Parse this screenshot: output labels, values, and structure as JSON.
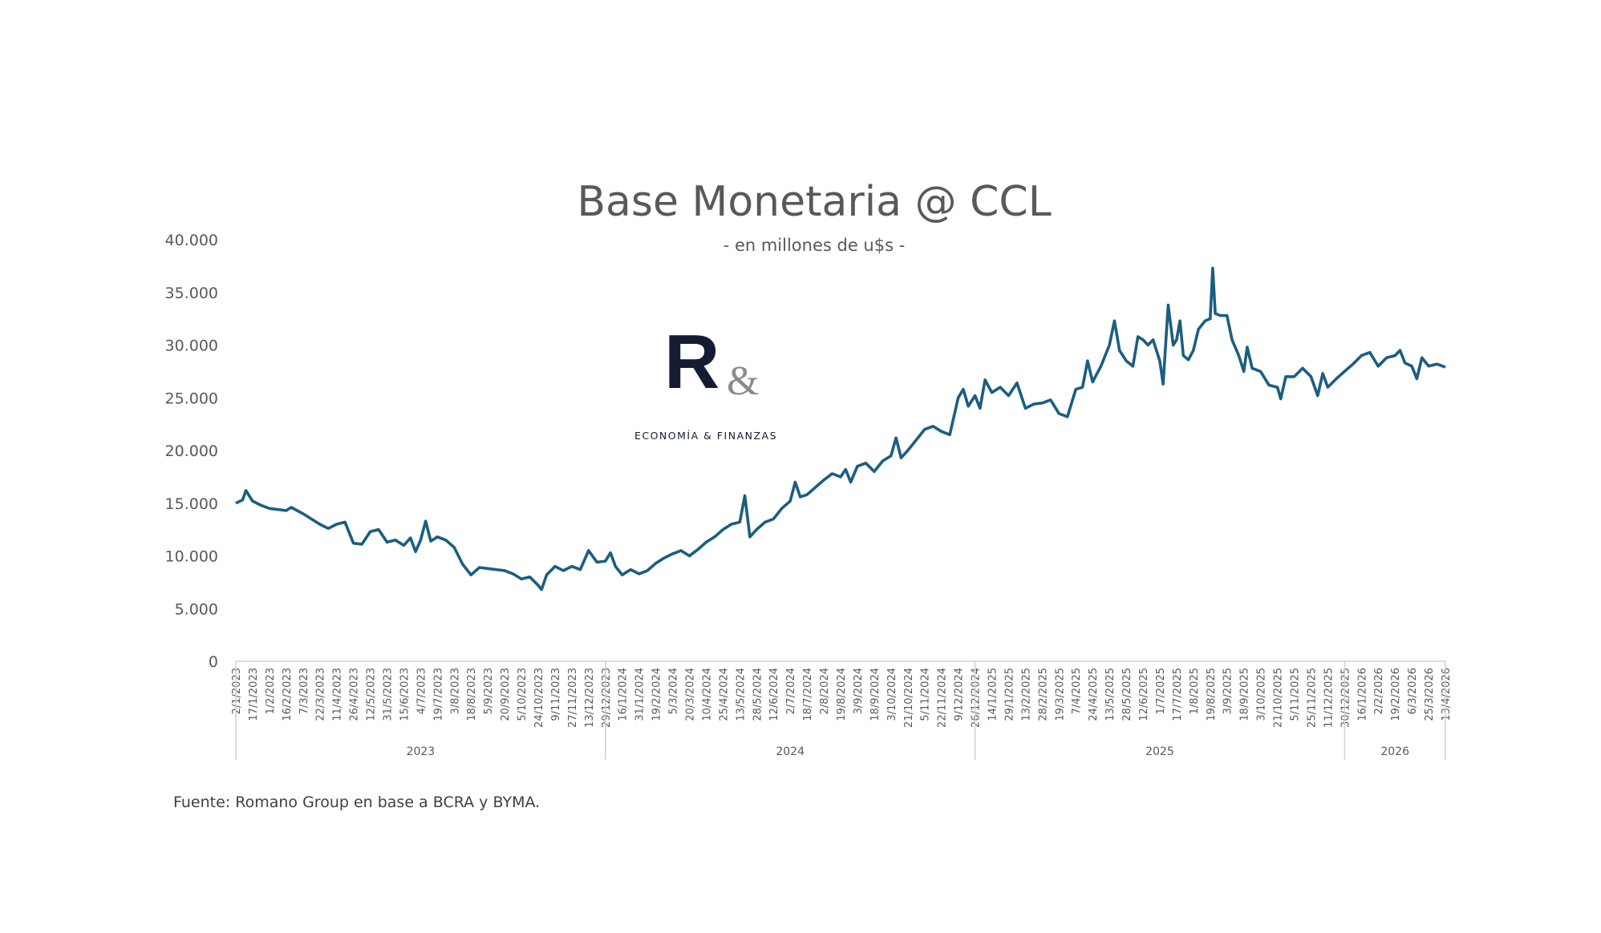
{
  "chart_data": {
    "type": "line",
    "title": "Base Monetaria @ CCL",
    "subtitle": "- en millones de u$s  -",
    "source": "Fuente: Romano Group en base a BCRA y BYMA.",
    "logo": {
      "mark": "R&",
      "text": "ECONOMÍA & FINANZAS"
    },
    "ylim": [
      0,
      40000
    ],
    "yticks": [
      "0",
      "5.000",
      "10.000",
      "15.000",
      "20.000",
      "25.000",
      "30.000",
      "35.000",
      "40.000"
    ],
    "ytick_values": [
      0,
      5000,
      10000,
      15000,
      20000,
      25000,
      30000,
      35000,
      40000
    ],
    "grid": false,
    "line_color": "#1b5e80",
    "categories": [
      "2/1/2023",
      "17/1/2023",
      "1/2/2023",
      "16/2/2023",
      "7/3/2023",
      "22/3/2023",
      "11/4/2023",
      "26/4/2023",
      "12/5/2023",
      "31/5/2023",
      "15/6/2023",
      "4/7/2023",
      "19/7/2023",
      "3/8/2023",
      "18/8/2023",
      "5/9/2023",
      "20/9/2023",
      "5/10/2023",
      "24/10/2023",
      "9/11/2023",
      "27/11/2023",
      "13/12/2023",
      "29/12/2023",
      "16/1/2024",
      "31/1/2024",
      "19/2/2024",
      "5/3/2024",
      "20/3/2024",
      "10/4/2024",
      "25/4/2024",
      "13/5/2024",
      "28/5/2024",
      "12/6/2024",
      "2/7/2024",
      "18/7/2024",
      "2/8/2024",
      "19/8/2024",
      "3/9/2024",
      "18/9/2024",
      "3/10/2024",
      "21/10/2024",
      "5/11/2024",
      "22/11/2024",
      "9/12/2024",
      "26/12/2024",
      "14/1/2025",
      "29/1/2025",
      "13/2/2025",
      "28/2/2025",
      "19/3/2025",
      "7/4/2025",
      "24/4/2025",
      "13/5/2025",
      "28/5/2025",
      "12/6/2025",
      "1/7/2025",
      "17/7/2025",
      "1/8/2025",
      "19/8/2025",
      "3/9/2025",
      "18/9/2025",
      "3/10/2025",
      "21/10/2025",
      "5/11/2025",
      "25/11/2025",
      "11/12/2025",
      "30/12/2025",
      "16/1/2026",
      "2/2/2026",
      "19/2/2026",
      "6/3/2026",
      "25/3/2026",
      "13/4/2026"
    ],
    "years": [
      {
        "label": "2023",
        "from": 0,
        "to": 22
      },
      {
        "label": "2024",
        "from": 22,
        "to": 44
      },
      {
        "label": "2025",
        "from": 44,
        "to": 66
      },
      {
        "label": "2026",
        "from": 66,
        "to": 72
      }
    ],
    "series": [
      {
        "name": "Base Monetaria @ CCL",
        "points": [
          [
            0,
            15000
          ],
          [
            0.4,
            15300
          ],
          [
            0.6,
            16200
          ],
          [
            1,
            15200
          ],
          [
            1.5,
            14800
          ],
          [
            2,
            14500
          ],
          [
            3,
            14300
          ],
          [
            3.3,
            14600
          ],
          [
            4,
            14000
          ],
          [
            4.5,
            13500
          ],
          [
            5,
            13000
          ],
          [
            5.5,
            12600
          ],
          [
            6,
            13000
          ],
          [
            6.5,
            13200
          ],
          [
            7,
            11200
          ],
          [
            7.5,
            11100
          ],
          [
            8,
            12300
          ],
          [
            8.5,
            12500
          ],
          [
            9,
            11300
          ],
          [
            9.5,
            11500
          ],
          [
            10,
            11000
          ],
          [
            10.4,
            11700
          ],
          [
            10.7,
            10400
          ],
          [
            11,
            11500
          ],
          [
            11.3,
            13300
          ],
          [
            11.6,
            11400
          ],
          [
            12,
            11800
          ],
          [
            12.5,
            11500
          ],
          [
            13,
            10800
          ],
          [
            13.5,
            9200
          ],
          [
            14,
            8200
          ],
          [
            14.5,
            8900
          ],
          [
            15,
            8800
          ],
          [
            15.5,
            8700
          ],
          [
            16,
            8600
          ],
          [
            16.5,
            8300
          ],
          [
            17,
            7800
          ],
          [
            17.5,
            8000
          ],
          [
            18,
            7200
          ],
          [
            18.2,
            6800
          ],
          [
            18.5,
            8200
          ],
          [
            19,
            9000
          ],
          [
            19.5,
            8600
          ],
          [
            20,
            9000
          ],
          [
            20.5,
            8700
          ],
          [
            21,
            10500
          ],
          [
            21.5,
            9400
          ],
          [
            22,
            9500
          ],
          [
            22.3,
            10300
          ],
          [
            22.6,
            9000
          ],
          [
            23,
            8200
          ],
          [
            23.5,
            8700
          ],
          [
            24,
            8300
          ],
          [
            24.5,
            8600
          ],
          [
            25,
            9300
          ],
          [
            25.5,
            9800
          ],
          [
            26,
            10200
          ],
          [
            26.5,
            10500
          ],
          [
            27,
            10000
          ],
          [
            27.5,
            10600
          ],
          [
            28,
            11300
          ],
          [
            28.5,
            11800
          ],
          [
            29,
            12500
          ],
          [
            29.5,
            13000
          ],
          [
            30,
            13200
          ],
          [
            30.3,
            15700
          ],
          [
            30.6,
            11800
          ],
          [
            31,
            12500
          ],
          [
            31.5,
            13200
          ],
          [
            32,
            13500
          ],
          [
            32.5,
            14500
          ],
          [
            33,
            15200
          ],
          [
            33.3,
            17000
          ],
          [
            33.6,
            15600
          ],
          [
            34,
            15800
          ],
          [
            34.5,
            16500
          ],
          [
            35,
            17200
          ],
          [
            35.5,
            17800
          ],
          [
            36,
            17500
          ],
          [
            36.3,
            18200
          ],
          [
            36.6,
            17000
          ],
          [
            37,
            18500
          ],
          [
            37.5,
            18800
          ],
          [
            38,
            18000
          ],
          [
            38.5,
            19000
          ],
          [
            39,
            19500
          ],
          [
            39.3,
            21200
          ],
          [
            39.6,
            19300
          ],
          [
            40,
            20000
          ],
          [
            40.5,
            21000
          ],
          [
            41,
            22000
          ],
          [
            41.5,
            22300
          ],
          [
            42,
            21800
          ],
          [
            42.5,
            21500
          ],
          [
            43,
            25000
          ],
          [
            43.3,
            25800
          ],
          [
            43.6,
            24200
          ],
          [
            44,
            25200
          ],
          [
            44.3,
            24000
          ],
          [
            44.6,
            26700
          ],
          [
            45,
            25500
          ],
          [
            45.5,
            26000
          ],
          [
            46,
            25200
          ],
          [
            46.5,
            26400
          ],
          [
            47,
            24000
          ],
          [
            47.5,
            24400
          ],
          [
            48,
            24500
          ],
          [
            48.5,
            24800
          ],
          [
            49,
            23500
          ],
          [
            49.5,
            23200
          ],
          [
            50,
            25800
          ],
          [
            50.4,
            26000
          ],
          [
            50.7,
            28500
          ],
          [
            51,
            26500
          ],
          [
            51.5,
            28000
          ],
          [
            52,
            30000
          ],
          [
            52.3,
            32300
          ],
          [
            52.6,
            29500
          ],
          [
            53,
            28500
          ],
          [
            53.4,
            28000
          ],
          [
            53.7,
            30800
          ],
          [
            54,
            30500
          ],
          [
            54.3,
            30000
          ],
          [
            54.6,
            30500
          ],
          [
            55,
            28500
          ],
          [
            55.2,
            26300
          ],
          [
            55.5,
            33800
          ],
          [
            55.8,
            30000
          ],
          [
            56,
            30500
          ],
          [
            56.2,
            32300
          ],
          [
            56.4,
            29000
          ],
          [
            56.7,
            28600
          ],
          [
            57,
            29500
          ],
          [
            57.3,
            31500
          ],
          [
            57.7,
            32300
          ],
          [
            58,
            32500
          ],
          [
            58.15,
            37300
          ],
          [
            58.3,
            33000
          ],
          [
            58.6,
            32800
          ],
          [
            59,
            32800
          ],
          [
            59.3,
            30500
          ],
          [
            59.7,
            29000
          ],
          [
            60,
            27500
          ],
          [
            60.2,
            29800
          ],
          [
            60.5,
            27800
          ],
          [
            61,
            27500
          ],
          [
            61.5,
            26200
          ],
          [
            62,
            26000
          ],
          [
            62.2,
            24900
          ],
          [
            62.5,
            27000
          ],
          [
            63,
            27000
          ],
          [
            63.5,
            27800
          ],
          [
            64,
            27000
          ],
          [
            64.4,
            25200
          ],
          [
            64.7,
            27300
          ],
          [
            65,
            26000
          ],
          [
            65.5,
            26800
          ],
          [
            66,
            27500
          ],
          [
            66.5,
            28200
          ],
          [
            67,
            29000
          ],
          [
            67.5,
            29300
          ],
          [
            68,
            28000
          ],
          [
            68.5,
            28800
          ],
          [
            69,
            29000
          ],
          [
            69.3,
            29500
          ],
          [
            69.6,
            28300
          ],
          [
            70,
            28000
          ],
          [
            70.3,
            26800
          ],
          [
            70.6,
            28800
          ],
          [
            71,
            28000
          ],
          [
            71.5,
            28200
          ],
          [
            72,
            27900
          ]
        ]
      }
    ]
  }
}
